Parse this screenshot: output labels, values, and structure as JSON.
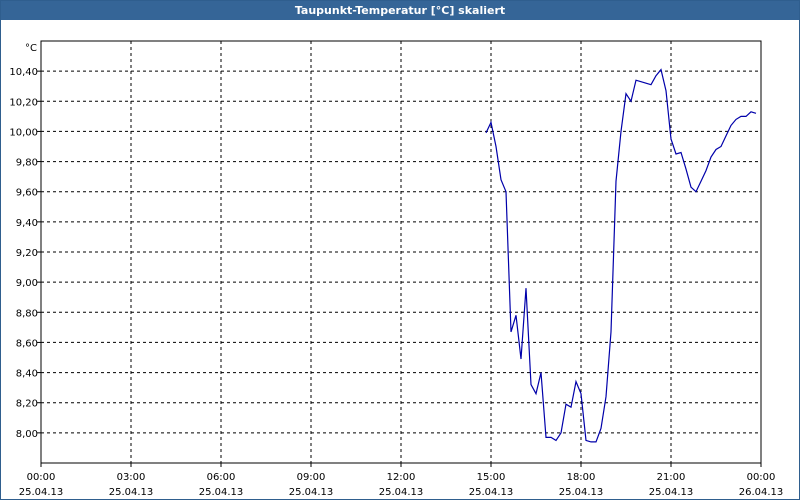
{
  "window": {
    "title": "Taupunkt-Temperatur [°C] skaliert"
  },
  "chart_data": {
    "type": "line",
    "title": "Taupunkt-Temperatur [°C] skaliert",
    "yunit": "°C",
    "ylim": [
      7.8,
      10.6
    ],
    "xlim": [
      "2013-04-25 00:00",
      "2013-04-26 00:00"
    ],
    "grid": true,
    "line_color": "#0000aa",
    "x_ticks": [
      {
        "time": "00:00",
        "date": "25.04.13"
      },
      {
        "time": "03:00",
        "date": "25.04.13"
      },
      {
        "time": "06:00",
        "date": "25.04.13"
      },
      {
        "time": "09:00",
        "date": "25.04.13"
      },
      {
        "time": "12:00",
        "date": "25.04.13"
      },
      {
        "time": "15:00",
        "date": "25.04.13"
      },
      {
        "time": "18:00",
        "date": "25.04.13"
      },
      {
        "time": "21:00",
        "date": "25.04.13"
      },
      {
        "time": "00:00",
        "date": "26.04.13"
      }
    ],
    "y_ticks": [
      "8,00",
      "8,20",
      "8,40",
      "8,60",
      "8,80",
      "9,00",
      "9,20",
      "9,40",
      "9,60",
      "9,80",
      "10,00",
      "10,20",
      "10,40"
    ],
    "series": [
      {
        "x": [
          "14:50",
          "15:00",
          "15:10",
          "15:20",
          "15:30",
          "15:40",
          "15:50",
          "16:00",
          "16:10",
          "16:20",
          "16:30",
          "16:40",
          "16:50",
          "17:00",
          "17:10",
          "17:20",
          "17:30",
          "17:40",
          "17:50",
          "18:00",
          "18:10",
          "18:20",
          "18:30",
          "18:40",
          "18:50",
          "19:00",
          "19:10",
          "19:20",
          "19:30",
          "19:40",
          "19:50",
          "20:00",
          "20:10",
          "20:20",
          "20:30",
          "20:40",
          "20:50",
          "21:00",
          "21:10",
          "21:20",
          "21:30",
          "21:40",
          "21:50",
          "22:00",
          "22:10",
          "22:20",
          "22:30",
          "22:40",
          "22:50",
          "23:00",
          "23:10",
          "23:20",
          "23:30",
          "23:40",
          "23:50"
        ],
        "y": [
          9.99,
          10.06,
          9.9,
          9.68,
          9.6,
          8.67,
          8.78,
          8.49,
          8.96,
          8.32,
          8.26,
          8.4,
          7.97,
          7.97,
          7.95,
          8.0,
          8.19,
          8.17,
          8.34,
          8.26,
          7.95,
          7.94,
          7.94,
          8.03,
          8.24,
          8.67,
          9.67,
          10.0,
          10.25,
          10.2,
          10.34,
          10.33,
          10.32,
          10.31,
          10.37,
          10.41,
          10.27,
          9.95,
          9.85,
          9.86,
          9.75,
          9.63,
          9.6,
          9.67,
          9.74,
          9.83,
          9.88,
          9.9,
          9.97,
          10.04,
          10.08,
          10.1,
          10.1,
          10.13,
          10.12
        ]
      }
    ]
  }
}
